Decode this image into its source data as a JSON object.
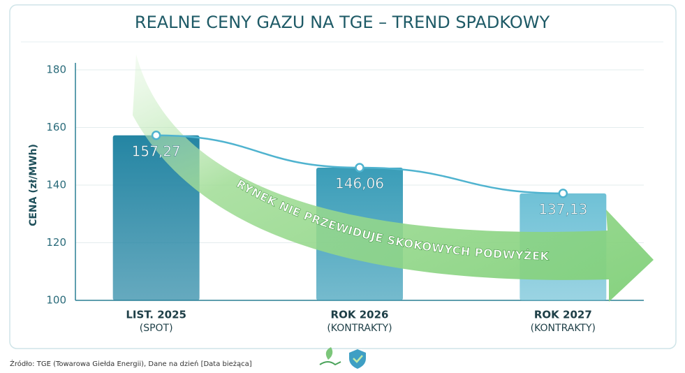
{
  "chart_data": {
    "type": "bar",
    "title": "REALNE CENY GAZU NA TGE – TREND SPADKOWY",
    "y_label": "CENA (zł/MWh)",
    "categories": [
      "LIST. 2025",
      "ROK 2026",
      "ROK 2027"
    ],
    "category_sublabels": [
      "(SPOT)",
      "(KONTRAKTY)",
      "(KONTRAKTY)"
    ],
    "values": [
      157.27,
      146.06,
      137.13
    ],
    "value_labels": [
      "157,27",
      "146,06",
      "137,13"
    ],
    "colors": [
      "#2485a3",
      "#3a9db8",
      "#6fc1d6"
    ],
    "trend_line": true,
    "line_color": "#4fb3cf",
    "ylim": [
      100,
      180
    ],
    "yticks": [
      100,
      120,
      140,
      160,
      180
    ],
    "grid": true,
    "annotation": "RYNEK NIE PRZEWIDUJE SKOKOWYCH PODWYŻEK",
    "source": "Źródło: TGE (Towarowa Giełda Energii), Dane na dzień [Data bieżąca]"
  }
}
